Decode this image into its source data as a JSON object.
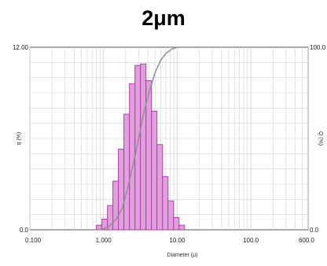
{
  "title": "2μm",
  "chart_data": {
    "type": "bar",
    "x_scale": "log",
    "xlim": [
      0.1,
      600
    ],
    "ylim_left": [
      0,
      12
    ],
    "ylim_right": [
      0,
      100
    ],
    "x_ticks": [
      0.1,
      1,
      10,
      100,
      600
    ],
    "x_tick_labels": [
      "0.100",
      "1.000",
      "10.00",
      "100.0",
      "600.0"
    ],
    "y_left_tick_labels": [
      "12.00",
      "0.0"
    ],
    "y_right_tick_labels": [
      "100.0",
      "0.0"
    ],
    "xlabel": "Diameter (μ)",
    "ylabel_left": "q (%)",
    "ylabel_right": "Q (%)",
    "grid": true,
    "bin_edges": [
      0.8,
      0.95,
      1.13,
      1.34,
      1.59,
      1.89,
      2.25,
      2.67,
      3.17,
      3.77,
      4.48,
      5.32,
      6.32,
      7.51,
      8.93,
      10.6,
      12.6
    ],
    "q_values": [
      0.3,
      0.7,
      1.6,
      3.2,
      5.3,
      7.6,
      9.6,
      10.8,
      10.9,
      9.8,
      7.8,
      5.6,
      3.5,
      1.9,
      0.8,
      0.3
    ],
    "cumulative_x": [
      0.8,
      1.0,
      1.2,
      1.5,
      1.8,
      2.1,
      2.5,
      3.0,
      3.5,
      4.2,
      5.0,
      6.0,
      7.2,
      8.5,
      10.0,
      12.0
    ],
    "cumulative_Q": [
      0,
      0.5,
      2,
      6,
      12,
      22,
      35,
      50,
      64,
      76,
      86,
      93,
      97,
      99,
      100,
      100
    ],
    "colors": {
      "bar_fill": "#e0a0dc",
      "bar_edge": "#b03ea8",
      "cumulative": "#909090",
      "grid": "#d2d2d2",
      "frame": "#555555"
    }
  }
}
